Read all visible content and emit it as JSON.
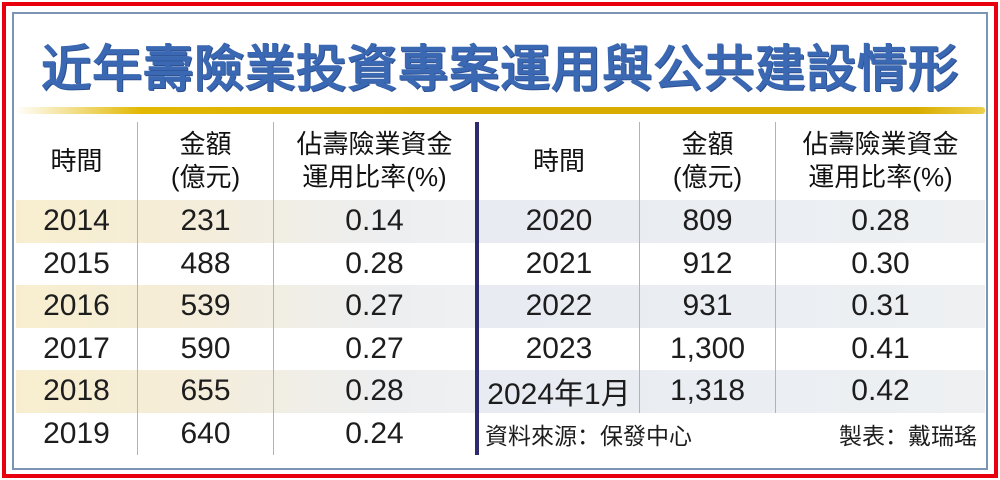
{
  "title": "近年壽險業投資專案運用與公共建設情形",
  "columns": {
    "time": "時間",
    "amount_line1": "金額",
    "amount_line2": "(億元)",
    "ratio_line1": "佔壽險業資金",
    "ratio_line2": "運用比率(%)"
  },
  "left_table": {
    "rows": [
      {
        "year": "2014",
        "amount": "231",
        "ratio": "0.14"
      },
      {
        "year": "2015",
        "amount": "488",
        "ratio": "0.28"
      },
      {
        "year": "2016",
        "amount": "539",
        "ratio": "0.27"
      },
      {
        "year": "2017",
        "amount": "590",
        "ratio": "0.27"
      },
      {
        "year": "2018",
        "amount": "655",
        "ratio": "0.28"
      },
      {
        "year": "2019",
        "amount": "640",
        "ratio": "0.24"
      }
    ]
  },
  "right_table": {
    "rows": [
      {
        "year": "2020",
        "amount": "809",
        "ratio": "0.28"
      },
      {
        "year": "2021",
        "amount": "912",
        "ratio": "0.30"
      },
      {
        "year": "2022",
        "amount": "931",
        "ratio": "0.31"
      },
      {
        "year": "2023",
        "amount": "1,300",
        "ratio": "0.41"
      },
      {
        "year": "2024年1月",
        "amount": "1,318",
        "ratio": "0.42"
      }
    ]
  },
  "footer": {
    "source": "資料來源：保發中心",
    "credit": "製表：戴瑞瑤"
  },
  "colors": {
    "title_blue": "#3a68b2",
    "outer_border_red": "#e8000e",
    "inner_border_blue": "#7b96b5",
    "gold_rule": "#d9ad00",
    "navy_divider": "#2d2a6d",
    "stripe_beige": "#f8eecf",
    "stripe_blue_gray": "#eaeef3",
    "column_divider_gray": "#b3b3b3"
  },
  "chart_data": {
    "type": "table",
    "title": "近年壽險業投資專案運用與公共建設情形",
    "columns": [
      "時間",
      "金額(億元)",
      "佔壽險業資金運用比率(%)"
    ],
    "rows": [
      [
        "2014",
        231,
        0.14
      ],
      [
        "2015",
        488,
        0.28
      ],
      [
        "2016",
        539,
        0.27
      ],
      [
        "2017",
        590,
        0.27
      ],
      [
        "2018",
        655,
        0.28
      ],
      [
        "2019",
        640,
        0.24
      ],
      [
        "2020",
        809,
        0.28
      ],
      [
        "2021",
        912,
        0.3
      ],
      [
        "2022",
        931,
        0.31
      ],
      [
        "2023",
        1300,
        0.41
      ],
      [
        "2024年1月",
        1318,
        0.42
      ]
    ],
    "source": "資料來源：保發中心",
    "credit": "製表：戴瑞瑤"
  }
}
